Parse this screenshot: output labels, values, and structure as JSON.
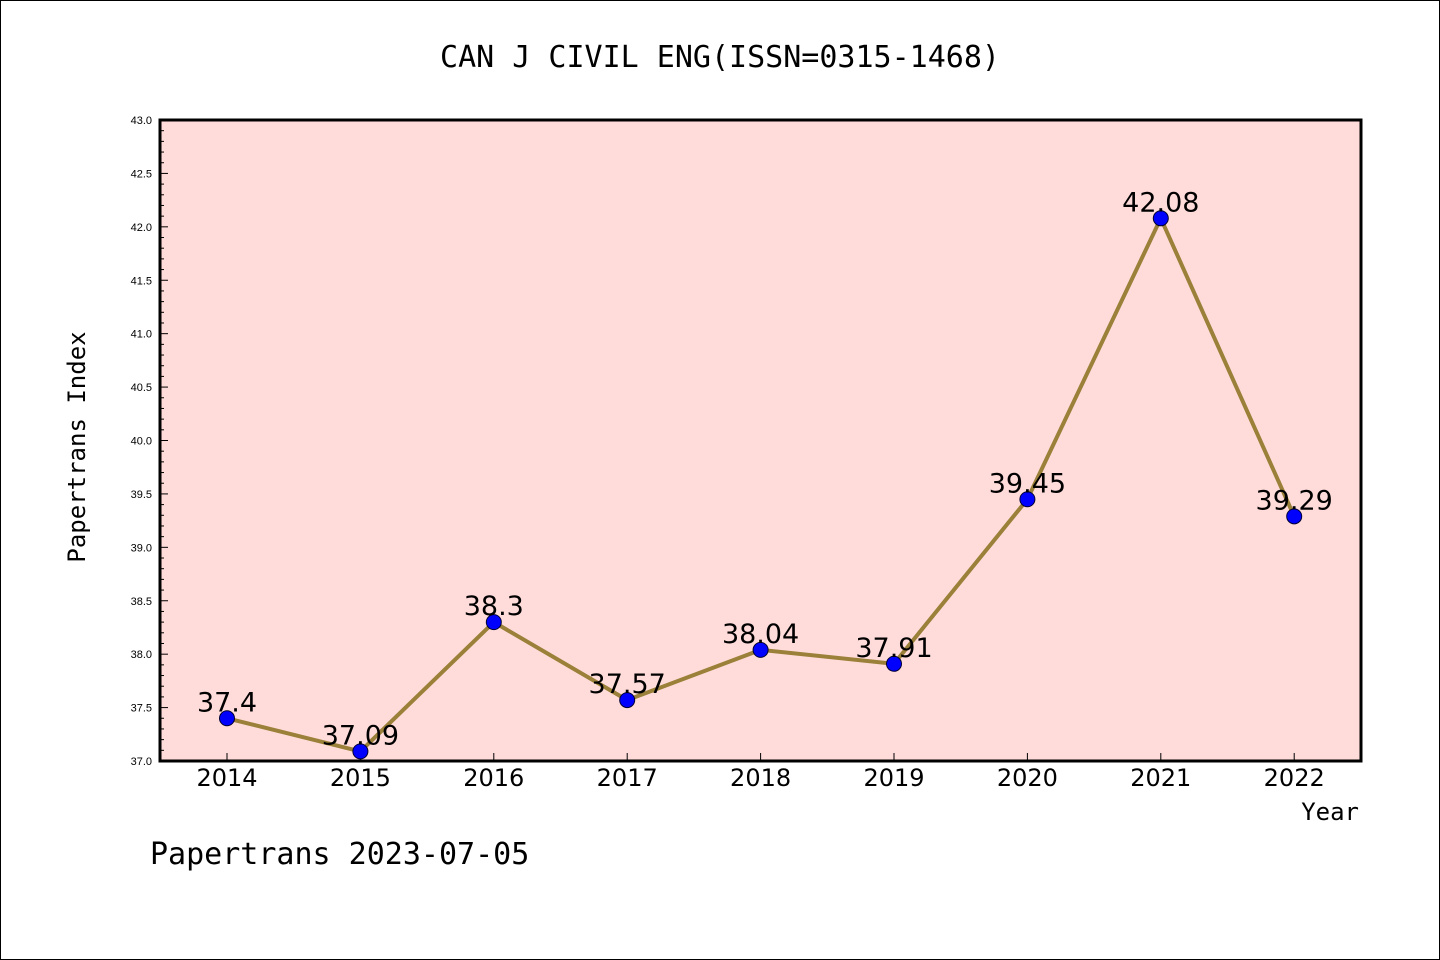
{
  "chart_data": {
    "type": "line",
    "title": "CAN J CIVIL ENG(ISSN=0315-1468)",
    "xlabel": "Year",
    "ylabel": "Papertrans Index",
    "categories": [
      "2014",
      "2015",
      "2016",
      "2017",
      "2018",
      "2019",
      "2020",
      "2021",
      "2022"
    ],
    "values": [
      37.4,
      37.09,
      38.3,
      37.57,
      38.04,
      37.91,
      39.45,
      42.08,
      39.29
    ],
    "data_labels": [
      "37.4",
      "37.09",
      "38.3",
      "37.57",
      "38.04",
      "37.91",
      "39.45",
      "42.08",
      "39.29"
    ],
    "ylim": [
      37.0,
      43.0
    ],
    "yticks": [
      "37.0",
      "37.5",
      "38.0",
      "38.5",
      "39.0",
      "39.5",
      "40.0",
      "40.5",
      "41.0",
      "41.5",
      "42.0",
      "42.5",
      "43.0"
    ],
    "grid": false,
    "colors": {
      "plot_background": "#FFDCDA",
      "line": "#9A8038",
      "marker": "#0000FF"
    }
  },
  "footer": "Papertrans 2023-07-05"
}
